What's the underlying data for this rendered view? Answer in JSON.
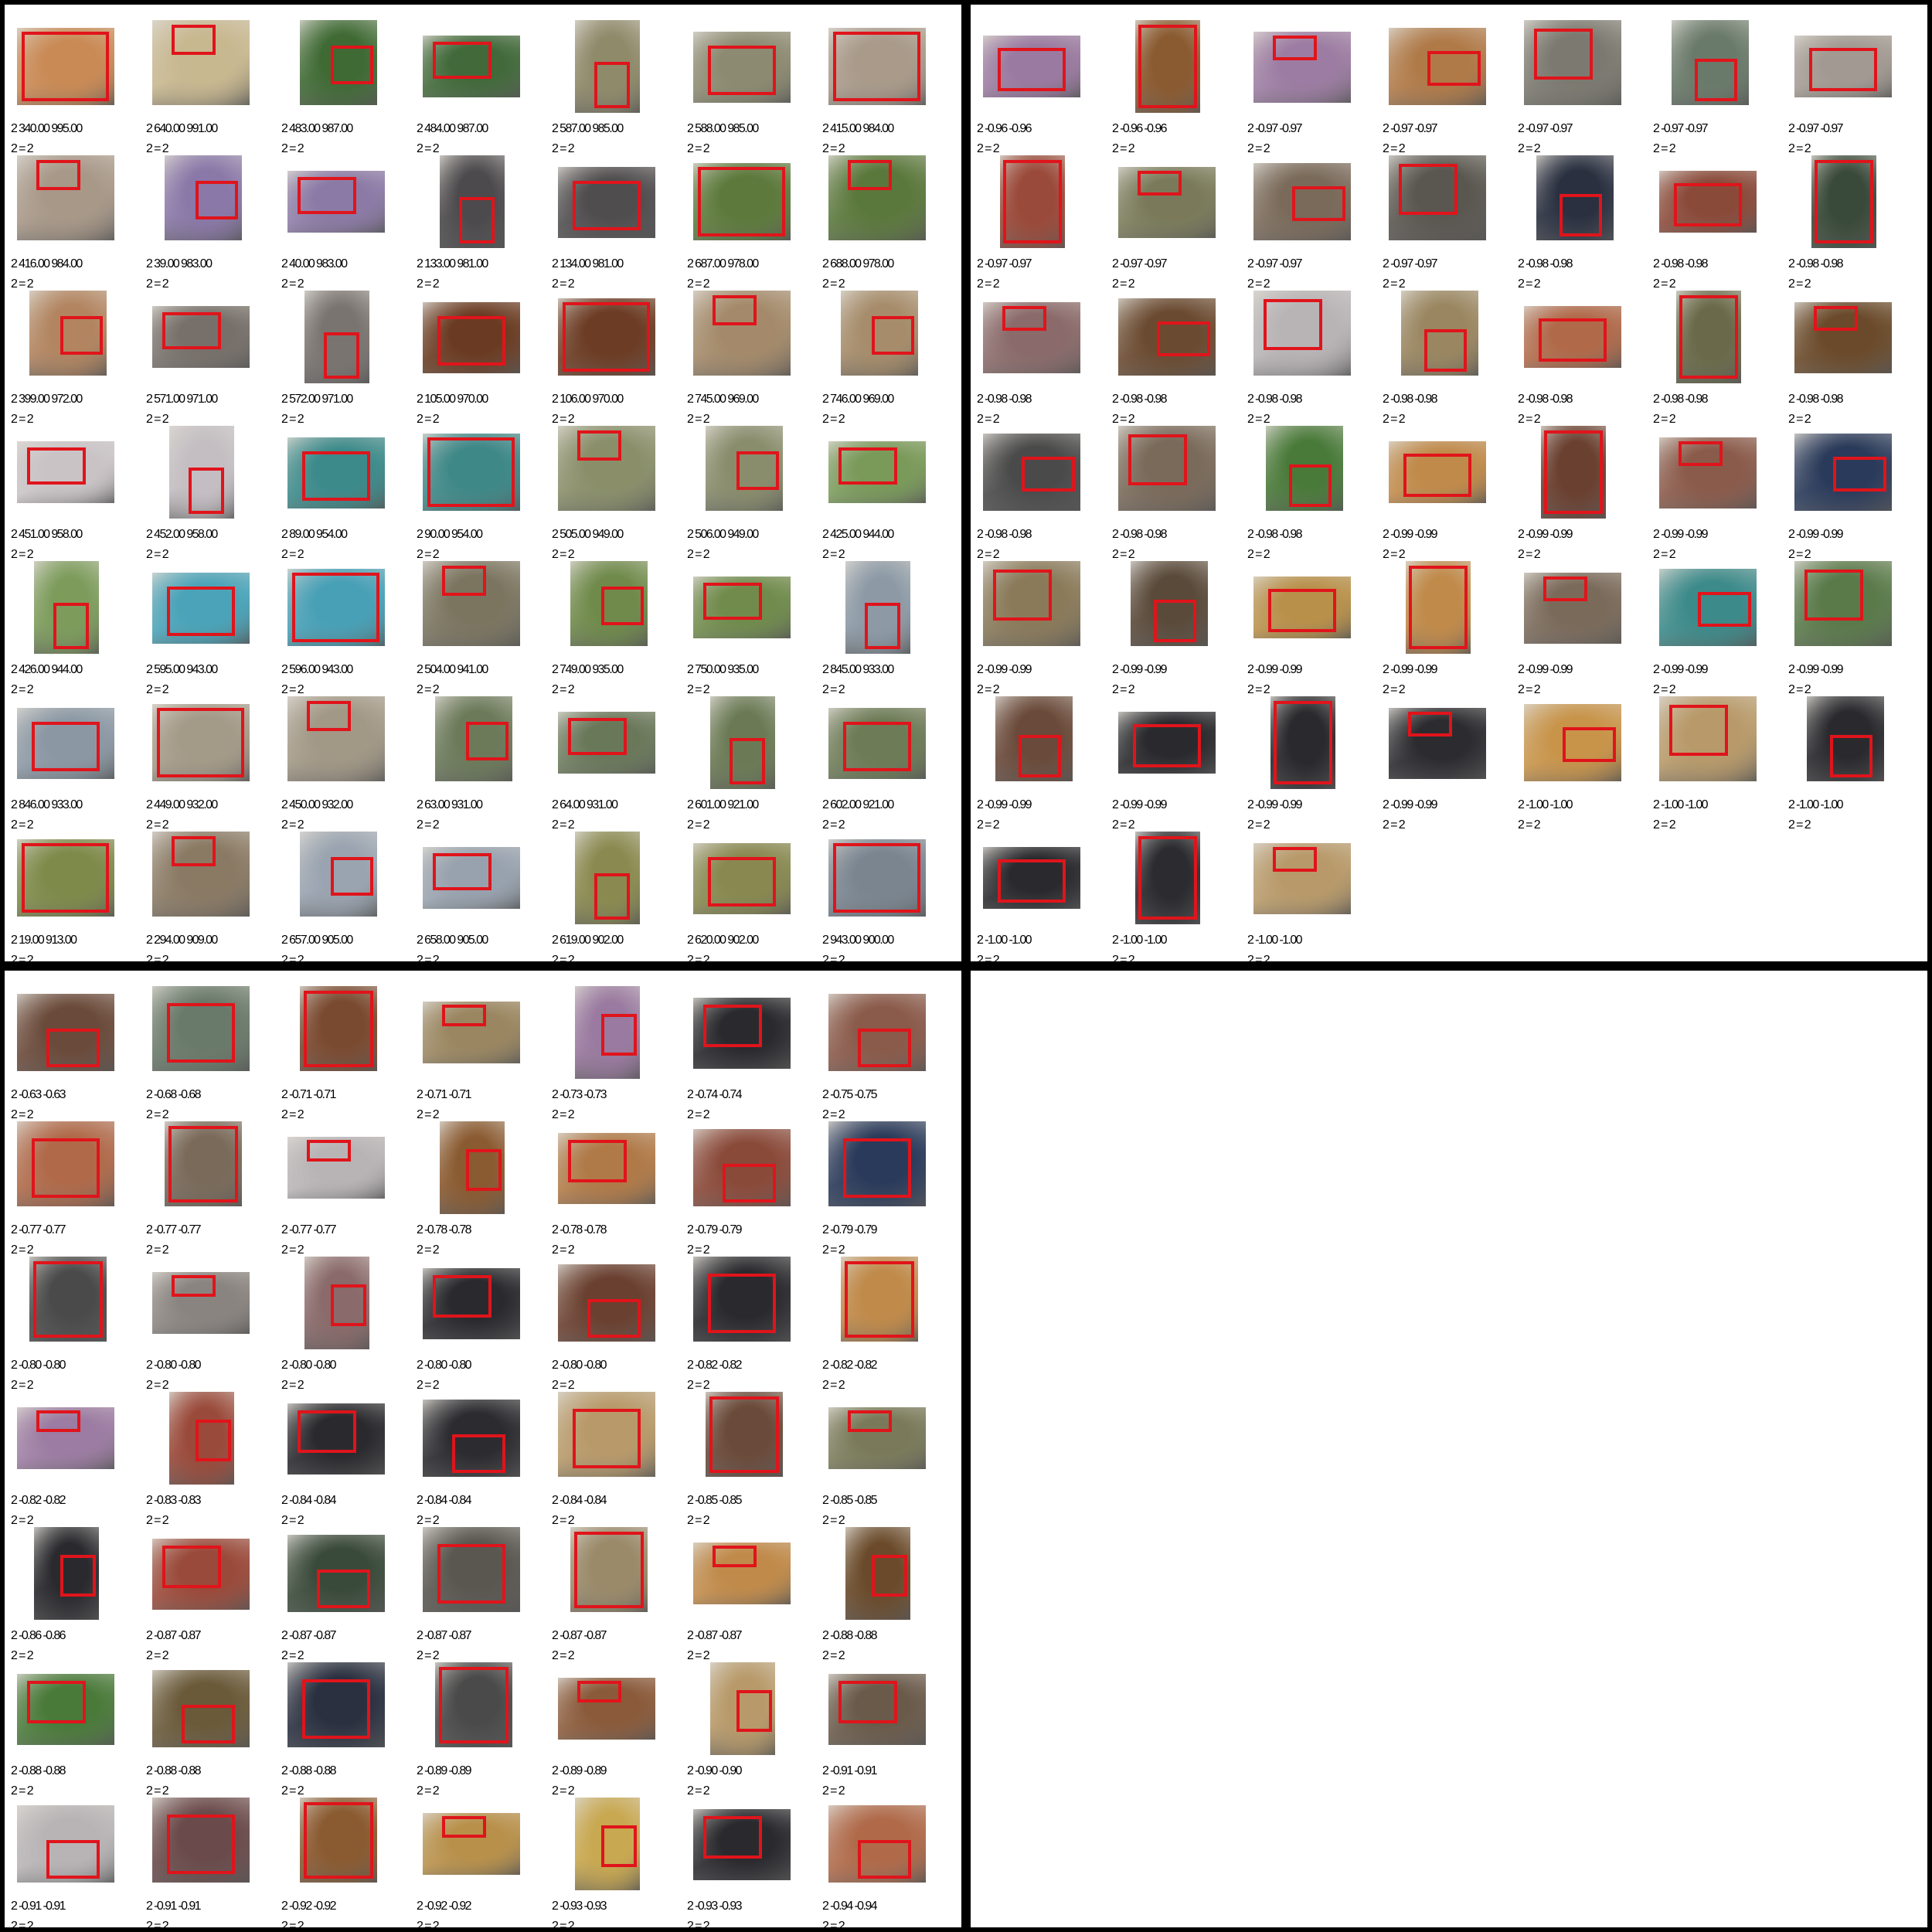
{
  "panels": [
    {
      "name": "top-left",
      "tiles": [
        {
          "score": "2 340.00 995.00",
          "pair": "2 = 2",
          "color": "#c98a55"
        },
        {
          "score": "2 640.00 991.00",
          "pair": "2 = 2",
          "color": "#c8b890"
        },
        {
          "score": "2 483.00 987.00",
          "pair": "2 = 2",
          "color": "#3f6a34"
        },
        {
          "score": "2 484.00 987.00",
          "pair": "2 = 2",
          "color": "#41693a"
        },
        {
          "score": "2 587.00 985.00",
          "pair": "2 = 2",
          "color": "#8f8a6a"
        },
        {
          "score": "2 588.00 985.00",
          "pair": "2 = 2",
          "color": "#8c8a70"
        },
        {
          "score": "2 415.00 984.00",
          "pair": "2 = 2",
          "color": "#a99a8a"
        },
        {
          "score": "2 416.00 984.00",
          "pair": "2 = 2",
          "color": "#a89888"
        },
        {
          "score": "2 39.00 983.00",
          "pair": "2 = 2",
          "color": "#8a78a8"
        },
        {
          "score": "2 40.00 983.00",
          "pair": "2 = 2",
          "color": "#8b7aa6"
        },
        {
          "score": "2 133.00 981.00",
          "pair": "2 = 2",
          "color": "#4c4a4c"
        },
        {
          "score": "2 134.00 981.00",
          "pair": "2 = 2",
          "color": "#504d4f"
        },
        {
          "score": "2 687.00 978.00",
          "pair": "2 = 2",
          "color": "#5d7a3c"
        },
        {
          "score": "2 688.00 978.00",
          "pair": "2 = 2",
          "color": "#5b783c"
        },
        {
          "score": "2 399.00 972.00",
          "pair": "2 = 2",
          "color": "#b28560"
        },
        {
          "score": "2 571.00 971.00",
          "pair": "2 = 2",
          "color": "#77706a"
        },
        {
          "score": "2 572.00 971.00",
          "pair": "2 = 2",
          "color": "#7a7470"
        },
        {
          "score": "2 105.00 970.00",
          "pair": "2 = 2",
          "color": "#6a3b22"
        },
        {
          "score": "2 106.00 970.00",
          "pair": "2 = 2",
          "color": "#6c3c24"
        },
        {
          "score": "2 745.00 969.00",
          "pair": "2 = 2",
          "color": "#a48a6a"
        },
        {
          "score": "2 746.00 969.00",
          "pair": "2 = 2",
          "color": "#a68c6a"
        },
        {
          "score": "2 451.00 958.00",
          "pair": "2 = 2",
          "color": "#c9c3c6"
        },
        {
          "score": "2 452.00 958.00",
          "pair": "2 = 2",
          "color": "#c4bec2"
        },
        {
          "score": "2 89.00 954.00",
          "pair": "2 = 2",
          "color": "#3c8a8a"
        },
        {
          "score": "2 90.00 954.00",
          "pair": "2 = 2",
          "color": "#3f8888"
        },
        {
          "score": "2 505.00 949.00",
          "pair": "2 = 2",
          "color": "#8a8f6a"
        },
        {
          "score": "2 506.00 949.00",
          "pair": "2 = 2",
          "color": "#898d6c"
        },
        {
          "score": "2 425.00 944.00",
          "pair": "2 = 2",
          "color": "#7a9a5a"
        },
        {
          "score": "2 426.00 944.00",
          "pair": "2 = 2",
          "color": "#7d9c5c"
        },
        {
          "score": "2 595.00 943.00",
          "pair": "2 = 2",
          "color": "#4aa3b8"
        },
        {
          "score": "2 596.00 943.00",
          "pair": "2 = 2",
          "color": "#48a0b6"
        },
        {
          "score": "2 504.00 941.00",
          "pair": "2 = 2",
          "color": "#7b7560"
        },
        {
          "score": "2 749.00 935.00",
          "pair": "2 = 2",
          "color": "#6f8a4a"
        },
        {
          "score": "2 750.00 935.00",
          "pair": "2 = 2",
          "color": "#708b4c"
        },
        {
          "score": "2 845.00 933.00",
          "pair": "2 = 2",
          "color": "#8d9aa6"
        },
        {
          "score": "2 846.00 933.00",
          "pair": "2 = 2",
          "color": "#8b98a4"
        },
        {
          "score": "2 449.00 932.00",
          "pair": "2 = 2",
          "color": "#a49a88"
        },
        {
          "score": "2 450.00 932.00",
          "pair": "2 = 2",
          "color": "#a29886"
        },
        {
          "score": "2 63.00 931.00",
          "pair": "2 = 2",
          "color": "#6c7a5a"
        },
        {
          "score": "2 64.00 931.00",
          "pair": "2 = 2",
          "color": "#6a785a"
        },
        {
          "score": "2 601.00 921.00",
          "pair": "2 = 2",
          "color": "#6b7a55"
        },
        {
          "score": "2 602.00 921.00",
          "pair": "2 = 2",
          "color": "#6d7b56"
        },
        {
          "score": "2 19.00 913.00",
          "pair": "2 = 2",
          "color": "#7e8a4a"
        },
        {
          "score": "2 294.00 909.00",
          "pair": "2 = 2",
          "color": "#8a7a64"
        },
        {
          "score": "2 657.00 905.00",
          "pair": "2 = 2",
          "color": "#9aa4b0"
        },
        {
          "score": "2 658.00 905.00",
          "pair": "2 = 2",
          "color": "#98a2ae"
        },
        {
          "score": "2 619.00 902.00",
          "pair": "2 = 2",
          "color": "#8a8a50"
        },
        {
          "score": "2 620.00 902.00",
          "pair": "2 = 2",
          "color": "#888850"
        },
        {
          "score": "2 943.00 900.00",
          "pair": "2 = 2",
          "color": "#7a8590"
        }
      ]
    },
    {
      "name": "top-right",
      "tiles": [
        {
          "score": "2 -0.96 -0.96",
          "pair": "2 = 2",
          "color": "#9a7aa0"
        },
        {
          "score": "2 -0.96 -0.96",
          "pair": "2 = 2",
          "color": "#8a5a30"
        },
        {
          "score": "2 -0.97 -0.97",
          "pair": "2 = 2",
          "color": "#9c7ca2"
        },
        {
          "score": "2 -0.97 -0.97",
          "pair": "2 = 2",
          "color": "#b07a48"
        },
        {
          "score": "2 -0.97 -0.97",
          "pair": "2 = 2",
          "color": "#7c7a70"
        },
        {
          "score": "2 -0.97 -0.97",
          "pair": "2 = 2",
          "color": "#6a7a6a"
        },
        {
          "score": "2 -0.97 -0.97",
          "pair": "2 = 2",
          "color": "#a29a92"
        },
        {
          "score": "2 -0.97 -0.97",
          "pair": "2 = 2",
          "color": "#9a4a3a"
        },
        {
          "score": "2 -0.97 -0.97",
          "pair": "2 = 2",
          "color": "#7a7a5a"
        },
        {
          "score": "2 -0.97 -0.97",
          "pair": "2 = 2",
          "color": "#7a6a5a"
        },
        {
          "score": "2 -0.97 -0.97",
          "pair": "2 = 2",
          "color": "#5a5650"
        },
        {
          "score": "2 -0.98 -0.98",
          "pair": "2 = 2",
          "color": "#2a3040"
        },
        {
          "score": "2 -0.98 -0.98",
          "pair": "2 = 2",
          "color": "#8a4a3a"
        },
        {
          "score": "2 -0.98 -0.98",
          "pair": "2 = 2",
          "color": "#3a4a3a"
        },
        {
          "score": "2 -0.98 -0.98",
          "pair": "2 = 2",
          "color": "#8a6a6a"
        },
        {
          "score": "2 -0.98 -0.98",
          "pair": "2 = 2",
          "color": "#6a4a30"
        },
        {
          "score": "2 -0.98 -0.98",
          "pair": "2 = 2",
          "color": "#b8b4b6"
        },
        {
          "score": "2 -0.98 -0.98",
          "pair": "2 = 2",
          "color": "#9a8660"
        },
        {
          "score": "2 -0.98 -0.98",
          "pair": "2 = 2",
          "color": "#b06a4a"
        },
        {
          "score": "2 -0.98 -0.98",
          "pair": "2 = 2",
          "color": "#6a6a4a"
        },
        {
          "score": "2 -0.98 -0.98",
          "pair": "2 = 2",
          "color": "#6a4a2a"
        },
        {
          "score": "2 -0.98 -0.98",
          "pair": "2 = 2",
          "color": "#4a4a4a"
        },
        {
          "score": "2 -0.98 -0.98",
          "pair": "2 = 2",
          "color": "#7a6a5a"
        },
        {
          "score": "2 -0.98 -0.98",
          "pair": "2 = 2",
          "color": "#4a7a3a"
        },
        {
          "score": "2 -0.99 -0.99",
          "pair": "2 = 2",
          "color": "#c08a4a"
        },
        {
          "score": "2 -0.99 -0.99",
          "pair": "2 = 2",
          "color": "#6a4030"
        },
        {
          "score": "2 -0.99 -0.99",
          "pair": "2 = 2",
          "color": "#8a5a4a"
        },
        {
          "score": "2 -0.99 -0.99",
          "pair": "2 = 2",
          "color": "#2a3a5a"
        },
        {
          "score": "2 -0.99 -0.99",
          "pair": "2 = 2",
          "color": "#8a7a5a"
        },
        {
          "score": "2 -0.99 -0.99",
          "pair": "2 = 2",
          "color": "#5a4a3a"
        },
        {
          "score": "2 -0.99 -0.99",
          "pair": "2 = 2",
          "color": "#b8904a"
        },
        {
          "score": "2 -0.99 -0.99",
          "pair": "2 = 2",
          "color": "#c08a4a"
        },
        {
          "score": "2 -0.99 -0.99",
          "pair": "2 = 2",
          "color": "#7a6a5a"
        },
        {
          "score": "2 -0.99 -0.99",
          "pair": "2 = 2",
          "color": "#3c8a8a"
        },
        {
          "score": "2 -0.99 -0.99",
          "pair": "2 = 2",
          "color": "#5a7a4a"
        },
        {
          "score": "2 -0.99 -0.99",
          "pair": "2 = 2",
          "color": "#6a4a3a"
        },
        {
          "score": "2 -0.99 -0.99",
          "pair": "2 = 2",
          "color": "#2a2a2e"
        },
        {
          "score": "2 -0.99 -0.99",
          "pair": "2 = 2",
          "color": "#2a2a2e"
        },
        {
          "score": "2 -0.99 -0.99",
          "pair": "2 = 2",
          "color": "#2c2c30"
        },
        {
          "score": "2 -1.00 -1.00",
          "pair": "2 = 2",
          "color": "#c8944a"
        },
        {
          "score": "2 -1.00 -1.00",
          "pair": "2 = 2",
          "color": "#b89a6a"
        },
        {
          "score": "2 -1.00 -1.00",
          "pair": "2 = 2",
          "color": "#2a2a2e"
        },
        {
          "score": "2 -1.00 -1.00",
          "pair": "2 = 2",
          "color": "#2a2a2e"
        },
        {
          "score": "2 -1.00 -1.00",
          "pair": "2 = 2",
          "color": "#2c2c30"
        },
        {
          "score": "2 -1.00 -1.00",
          "pair": "2 = 2",
          "color": "#b89a6a"
        }
      ]
    },
    {
      "name": "bottom-left",
      "tiles": [
        {
          "score": "2 -0.63 -0.63",
          "pair": "2 = 2",
          "color": "#6a4a3a"
        },
        {
          "score": "2 -0.68 -0.68",
          "pair": "2 = 2",
          "color": "#6a7a6a"
        },
        {
          "score": "2 -0.71 -0.71",
          "pair": "2 = 2",
          "color": "#7a4a30"
        },
        {
          "score": "2 -0.71 -0.71",
          "pair": "2 = 2",
          "color": "#9a8660"
        },
        {
          "score": "2 -0.73 -0.73",
          "pair": "2 = 2",
          "color": "#9a7aa0"
        },
        {
          "score": "2 -0.74 -0.74",
          "pair": "2 = 2",
          "color": "#2a2a2e"
        },
        {
          "score": "2 -0.75 -0.75",
          "pair": "2 = 2",
          "color": "#8a5a4a"
        },
        {
          "score": "2 -0.77 -0.77",
          "pair": "2 = 2",
          "color": "#b06a4a"
        },
        {
          "score": "2 -0.77 -0.77",
          "pair": "2 = 2",
          "color": "#7a6a5a"
        },
        {
          "score": "2 -0.77 -0.77",
          "pair": "2 = 2",
          "color": "#b8b4b6"
        },
        {
          "score": "2 -0.78 -0.78",
          "pair": "2 = 2",
          "color": "#8a5a30"
        },
        {
          "score": "2 -0.78 -0.78",
          "pair": "2 = 2",
          "color": "#b07a48"
        },
        {
          "score": "2 -0.79 -0.79",
          "pair": "2 = 2",
          "color": "#8a4a3a"
        },
        {
          "score": "2 -0.79 -0.79",
          "pair": "2 = 2",
          "color": "#2a3a5a"
        },
        {
          "score": "2 -0.80 -0.80",
          "pair": "2 = 2",
          "color": "#4a4a4a"
        },
        {
          "score": "2 -0.80 -0.80",
          "pair": "2 = 2",
          "color": "#8a8480"
        },
        {
          "score": "2 -0.80 -0.80",
          "pair": "2 = 2",
          "color": "#8a6a6a"
        },
        {
          "score": "2 -0.80 -0.80",
          "pair": "2 = 2",
          "color": "#2a2a2e"
        },
        {
          "score": "2 -0.80 -0.80",
          "pair": "2 = 2",
          "color": "#6a4030"
        },
        {
          "score": "2 -0.82 -0.82",
          "pair": "2 = 2",
          "color": "#2a2a2e"
        },
        {
          "score": "2 -0.82 -0.82",
          "pair": "2 = 2",
          "color": "#c08a4a"
        },
        {
          "score": "2 -0.82 -0.82",
          "pair": "2 = 2",
          "color": "#9c7ca2"
        },
        {
          "score": "2 -0.83 -0.83",
          "pair": "2 = 2",
          "color": "#9a4a3a"
        },
        {
          "score": "2 -0.84 -0.84",
          "pair": "2 = 2",
          "color": "#2a2a2e"
        },
        {
          "score": "2 -0.84 -0.84",
          "pair": "2 = 2",
          "color": "#2c2c30"
        },
        {
          "score": "2 -0.84 -0.84",
          "pair": "2 = 2",
          "color": "#b89a6a"
        },
        {
          "score": "2 -0.85 -0.85",
          "pair": "2 = 2",
          "color": "#6a4a3a"
        },
        {
          "score": "2 -0.85 -0.85",
          "pair": "2 = 2",
          "color": "#7a7a5a"
        },
        {
          "score": "2 -0.86 -0.86",
          "pair": "2 = 2",
          "color": "#2a2a2e"
        },
        {
          "score": "2 -0.87 -0.87",
          "pair": "2 = 2",
          "color": "#9a4a3a"
        },
        {
          "score": "2 -0.87 -0.87",
          "pair": "2 = 2",
          "color": "#3a4a3a"
        },
        {
          "score": "2 -0.87 -0.87",
          "pair": "2 = 2",
          "color": "#5a5650"
        },
        {
          "score": "2 -0.87 -0.87",
          "pair": "2 = 2",
          "color": "#9a8a6a"
        },
        {
          "score": "2 -0.87 -0.87",
          "pair": "2 = 2",
          "color": "#c08a4a"
        },
        {
          "score": "2 -0.88 -0.88",
          "pair": "2 = 2",
          "color": "#6a4a2a"
        },
        {
          "score": "2 -0.88 -0.88",
          "pair": "2 = 2",
          "color": "#4a7a3a"
        },
        {
          "score": "2 -0.88 -0.88",
          "pair": "2 = 2",
          "color": "#6a5a3a"
        },
        {
          "score": "2 -0.88 -0.88",
          "pair": "2 = 2",
          "color": "#2a3040"
        },
        {
          "score": "2 -0.89 -0.89",
          "pair": "2 = 2",
          "color": "#4a4a4a"
        },
        {
          "score": "2 -0.89 -0.89",
          "pair": "2 = 2",
          "color": "#8a5a3a"
        },
        {
          "score": "2 -0.90 -0.90",
          "pair": "2 = 2",
          "color": "#b89a6a"
        },
        {
          "score": "2 -0.91 -0.91",
          "pair": "2 = 2",
          "color": "#6a5a4a"
        },
        {
          "score": "2 -0.91 -0.91",
          "pair": "2 = 2",
          "color": "#b8b4b6"
        },
        {
          "score": "2 -0.91 -0.91",
          "pair": "2 = 2",
          "color": "#6a4a4a"
        },
        {
          "score": "2 -0.92 -0.92",
          "pair": "2 = 2",
          "color": "#8a5a30"
        },
        {
          "score": "2 -0.92 -0.92",
          "pair": "2 = 2",
          "color": "#b8904a"
        },
        {
          "score": "2 -0.93 -0.93",
          "pair": "2 = 2",
          "color": "#c8a850"
        },
        {
          "score": "2 -0.93 -0.93",
          "pair": "2 = 2",
          "color": "#2a2a2e"
        },
        {
          "score": "2 -0.94 -0.94",
          "pair": "2 = 2",
          "color": "#b06a4a"
        }
      ]
    },
    {
      "name": "bottom-right",
      "tiles": []
    }
  ]
}
